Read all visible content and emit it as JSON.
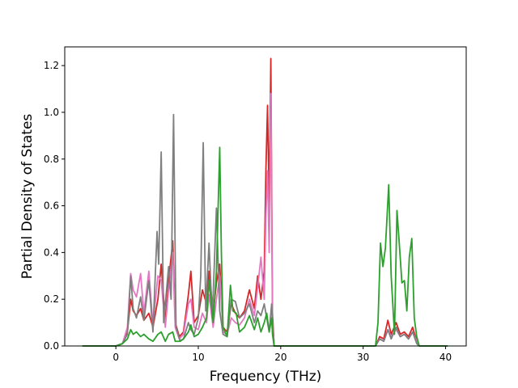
{
  "chart_data": {
    "type": "line",
    "title": "",
    "xlabel": "Frequency (THz)",
    "ylabel": "Partial Density of States",
    "xlim": [
      -6.2,
      42.5
    ],
    "ylim": [
      0,
      1.28
    ],
    "xticks": [
      0,
      10,
      20,
      30,
      40
    ],
    "yticks": [
      0.0,
      0.2,
      0.4,
      0.6,
      0.8,
      1.0,
      1.2
    ],
    "xtick_labels": [
      "0",
      "10",
      "20",
      "30",
      "40"
    ],
    "ytick_labels": [
      "0.0",
      "0.2",
      "0.4",
      "0.6",
      "0.8",
      "1.0",
      "1.2"
    ],
    "grid": false,
    "legend": "none",
    "series": [
      {
        "color": "#d62728",
        "points": [
          [
            -4,
            0
          ],
          [
            0,
            0
          ],
          [
            0.8,
            0.01
          ],
          [
            1.4,
            0.06
          ],
          [
            1.8,
            0.2
          ],
          [
            2.1,
            0.15
          ],
          [
            2.5,
            0.13
          ],
          [
            3.0,
            0.16
          ],
          [
            3.4,
            0.11
          ],
          [
            4.0,
            0.14
          ],
          [
            4.5,
            0.08
          ],
          [
            5.1,
            0.2
          ],
          [
            5.5,
            0.35
          ],
          [
            6.0,
            0.1
          ],
          [
            6.4,
            0.28
          ],
          [
            6.9,
            0.45
          ],
          [
            7.2,
            0.1
          ],
          [
            7.7,
            0.04
          ],
          [
            8.2,
            0.06
          ],
          [
            8.8,
            0.22
          ],
          [
            9.1,
            0.32
          ],
          [
            9.5,
            0.1
          ],
          [
            10.0,
            0.13
          ],
          [
            10.5,
            0.24
          ],
          [
            11.0,
            0.18
          ],
          [
            11.3,
            0.32
          ],
          [
            11.8,
            0.14
          ],
          [
            12.2,
            0.27
          ],
          [
            12.6,
            0.35
          ],
          [
            13.0,
            0.08
          ],
          [
            13.5,
            0.06
          ],
          [
            14.0,
            0.18
          ],
          [
            14.5,
            0.14
          ],
          [
            15.0,
            0.12
          ],
          [
            15.6,
            0.15
          ],
          [
            16.2,
            0.24
          ],
          [
            16.8,
            0.16
          ],
          [
            17.2,
            0.3
          ],
          [
            17.6,
            0.2
          ],
          [
            18.0,
            0.32
          ],
          [
            18.2,
            0.75
          ],
          [
            18.4,
            1.03
          ],
          [
            18.6,
            0.6
          ],
          [
            18.8,
            1.23
          ],
          [
            19.0,
            0.14
          ],
          [
            19.2,
            0
          ],
          [
            31.5,
            0
          ],
          [
            32.0,
            0.04
          ],
          [
            32.5,
            0.03
          ],
          [
            33.0,
            0.11
          ],
          [
            33.4,
            0.05
          ],
          [
            34.0,
            0.1
          ],
          [
            34.5,
            0.05
          ],
          [
            35.0,
            0.06
          ],
          [
            35.5,
            0.04
          ],
          [
            36.0,
            0.08
          ],
          [
            36.5,
            0.02
          ],
          [
            36.8,
            0
          ],
          [
            40.2,
            0
          ]
        ]
      },
      {
        "color": "#e377c2",
        "points": [
          [
            -4,
            0
          ],
          [
            0,
            0
          ],
          [
            0.8,
            0.01
          ],
          [
            1.4,
            0.08
          ],
          [
            1.8,
            0.31
          ],
          [
            2.1,
            0.24
          ],
          [
            2.5,
            0.21
          ],
          [
            3.0,
            0.31
          ],
          [
            3.4,
            0.14
          ],
          [
            4.0,
            0.32
          ],
          [
            4.5,
            0.09
          ],
          [
            5.1,
            0.3
          ],
          [
            5.5,
            0.28
          ],
          [
            6.0,
            0.08
          ],
          [
            6.4,
            0.24
          ],
          [
            6.9,
            0.4
          ],
          [
            7.2,
            0.08
          ],
          [
            7.7,
            0.03
          ],
          [
            8.2,
            0.05
          ],
          [
            8.8,
            0.18
          ],
          [
            9.1,
            0.2
          ],
          [
            9.5,
            0.08
          ],
          [
            10.0,
            0.07
          ],
          [
            10.5,
            0.14
          ],
          [
            11.0,
            0.1
          ],
          [
            11.3,
            0.22
          ],
          [
            11.8,
            0.08
          ],
          [
            12.2,
            0.2
          ],
          [
            12.6,
            0.3
          ],
          [
            13.0,
            0.06
          ],
          [
            13.5,
            0.05
          ],
          [
            14.0,
            0.12
          ],
          [
            14.5,
            0.1
          ],
          [
            15.0,
            0.09
          ],
          [
            15.6,
            0.12
          ],
          [
            16.2,
            0.2
          ],
          [
            16.8,
            0.13
          ],
          [
            17.2,
            0.25
          ],
          [
            17.6,
            0.38
          ],
          [
            18.0,
            0.2
          ],
          [
            18.2,
            0.55
          ],
          [
            18.4,
            0.75
          ],
          [
            18.6,
            0.4
          ],
          [
            18.8,
            1.08
          ],
          [
            19.0,
            0.1
          ],
          [
            19.2,
            0
          ],
          [
            31.5,
            0
          ],
          [
            32.0,
            0.03
          ],
          [
            32.5,
            0.02
          ],
          [
            33.0,
            0.07
          ],
          [
            33.4,
            0.04
          ],
          [
            34.0,
            0.07
          ],
          [
            34.5,
            0.04
          ],
          [
            35.0,
            0.05
          ],
          [
            35.5,
            0.03
          ],
          [
            36.0,
            0.06
          ],
          [
            36.5,
            0.02
          ],
          [
            36.8,
            0
          ],
          [
            40.2,
            0
          ]
        ]
      },
      {
        "color": "#7f7f7f",
        "points": [
          [
            -4,
            0
          ],
          [
            0,
            0
          ],
          [
            0.8,
            0.01
          ],
          [
            1.4,
            0.05
          ],
          [
            1.8,
            0.3
          ],
          [
            2.1,
            0.16
          ],
          [
            2.5,
            0.12
          ],
          [
            3.0,
            0.21
          ],
          [
            3.4,
            0.11
          ],
          [
            4.0,
            0.28
          ],
          [
            4.5,
            0.06
          ],
          [
            5.0,
            0.49
          ],
          [
            5.2,
            0.35
          ],
          [
            5.5,
            0.83
          ],
          [
            5.8,
            0.1
          ],
          [
            6.4,
            0.34
          ],
          [
            6.7,
            0.2
          ],
          [
            7.0,
            0.99
          ],
          [
            7.3,
            0.08
          ],
          [
            7.8,
            0.02
          ],
          [
            8.2,
            0.03
          ],
          [
            8.8,
            0.1
          ],
          [
            9.1,
            0.07
          ],
          [
            9.5,
            0.05
          ],
          [
            10.0,
            0.12
          ],
          [
            10.3,
            0.3
          ],
          [
            10.6,
            0.87
          ],
          [
            10.9,
            0.15
          ],
          [
            11.3,
            0.44
          ],
          [
            11.7,
            0.12
          ],
          [
            12.2,
            0.59
          ],
          [
            12.6,
            0.15
          ],
          [
            13.0,
            0.05
          ],
          [
            13.5,
            0.04
          ],
          [
            14.0,
            0.2
          ],
          [
            14.5,
            0.19
          ],
          [
            15.0,
            0.12
          ],
          [
            15.6,
            0.14
          ],
          [
            16.2,
            0.18
          ],
          [
            16.8,
            0.1
          ],
          [
            17.2,
            0.15
          ],
          [
            17.6,
            0.13
          ],
          [
            18.0,
            0.18
          ],
          [
            18.3,
            0.12
          ],
          [
            18.6,
            0.06
          ],
          [
            18.9,
            0.18
          ],
          [
            19.0,
            0.1
          ],
          [
            19.2,
            0
          ],
          [
            31.5,
            0
          ],
          [
            32.0,
            0.03
          ],
          [
            32.5,
            0.02
          ],
          [
            33.0,
            0.07
          ],
          [
            33.4,
            0.03
          ],
          [
            34.0,
            0.08
          ],
          [
            34.5,
            0.04
          ],
          [
            35.0,
            0.05
          ],
          [
            35.5,
            0.03
          ],
          [
            36.0,
            0.06
          ],
          [
            36.5,
            0.01
          ],
          [
            36.8,
            0
          ],
          [
            40.2,
            0
          ]
        ]
      },
      {
        "color": "#2ca02c",
        "points": [
          [
            -4,
            0
          ],
          [
            0,
            0
          ],
          [
            0.8,
            0.01
          ],
          [
            1.4,
            0.03
          ],
          [
            1.8,
            0.07
          ],
          [
            2.1,
            0.05
          ],
          [
            2.5,
            0.06
          ],
          [
            3.0,
            0.04
          ],
          [
            3.4,
            0.05
          ],
          [
            4.0,
            0.03
          ],
          [
            4.5,
            0.02
          ],
          [
            5.1,
            0.05
          ],
          [
            5.5,
            0.06
          ],
          [
            6.0,
            0.02
          ],
          [
            6.4,
            0.05
          ],
          [
            6.9,
            0.06
          ],
          [
            7.2,
            0.02
          ],
          [
            7.7,
            0.02
          ],
          [
            8.2,
            0.03
          ],
          [
            8.8,
            0.06
          ],
          [
            9.1,
            0.09
          ],
          [
            9.5,
            0.04
          ],
          [
            10.0,
            0.05
          ],
          [
            10.5,
            0.08
          ],
          [
            11.0,
            0.12
          ],
          [
            11.3,
            0.28
          ],
          [
            11.8,
            0.1
          ],
          [
            12.2,
            0.32
          ],
          [
            12.6,
            0.85
          ],
          [
            12.8,
            0.4
          ],
          [
            13.0,
            0.08
          ],
          [
            13.5,
            0.04
          ],
          [
            13.9,
            0.26
          ],
          [
            14.2,
            0.15
          ],
          [
            14.6,
            0.14
          ],
          [
            15.0,
            0.06
          ],
          [
            15.6,
            0.08
          ],
          [
            16.2,
            0.13
          ],
          [
            16.8,
            0.07
          ],
          [
            17.2,
            0.12
          ],
          [
            17.6,
            0.06
          ],
          [
            18.0,
            0.1
          ],
          [
            18.3,
            0.14
          ],
          [
            18.6,
            0.06
          ],
          [
            18.9,
            0.12
          ],
          [
            19.0,
            0.05
          ],
          [
            19.2,
            0
          ],
          [
            31.5,
            0
          ],
          [
            31.8,
            0.1
          ],
          [
            32.1,
            0.44
          ],
          [
            32.4,
            0.34
          ],
          [
            32.7,
            0.42
          ],
          [
            33.1,
            0.69
          ],
          [
            33.4,
            0.3
          ],
          [
            33.8,
            0.05
          ],
          [
            34.1,
            0.58
          ],
          [
            34.4,
            0.43
          ],
          [
            34.7,
            0.27
          ],
          [
            35.0,
            0.28
          ],
          [
            35.3,
            0.15
          ],
          [
            35.6,
            0.38
          ],
          [
            35.9,
            0.46
          ],
          [
            36.2,
            0.12
          ],
          [
            36.5,
            0.04
          ],
          [
            36.8,
            0
          ],
          [
            40.2,
            0
          ]
        ]
      }
    ]
  }
}
